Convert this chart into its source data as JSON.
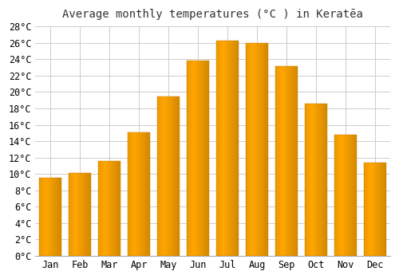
{
  "title": "Average monthly temperatures (°C ) in Keratēa",
  "months": [
    "Jan",
    "Feb",
    "Mar",
    "Apr",
    "May",
    "Jun",
    "Jul",
    "Aug",
    "Sep",
    "Oct",
    "Nov",
    "Dec"
  ],
  "values": [
    9.5,
    10.1,
    11.6,
    15.1,
    19.5,
    23.8,
    26.3,
    26.0,
    23.2,
    18.6,
    14.8,
    11.4
  ],
  "ylim": [
    0,
    28
  ],
  "yticks": [
    0,
    2,
    4,
    6,
    8,
    10,
    12,
    14,
    16,
    18,
    20,
    22,
    24,
    26,
    28
  ],
  "bar_color": "#FFA726",
  "bar_edge_color": "#E8940A",
  "background_color": "#ffffff",
  "plot_bg_color": "#ffffff",
  "grid_color": "#cccccc",
  "title_fontsize": 10,
  "tick_fontsize": 8.5,
  "bar_width": 0.75
}
